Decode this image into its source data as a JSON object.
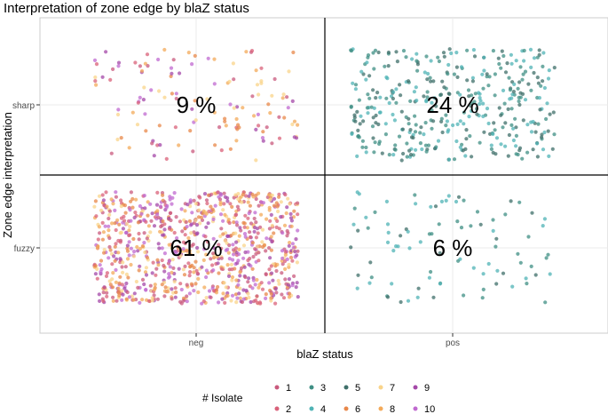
{
  "chart_data": {
    "type": "scatter",
    "title": "Interpretation of zone edge by blaZ status",
    "xlabel": "blaZ status",
    "ylabel": "Zone edge interpretation",
    "x_categories": [
      "neg",
      "pos"
    ],
    "y_categories": [
      "fuzzy",
      "sharp"
    ],
    "cells": [
      {
        "x": "neg",
        "y": "sharp",
        "percent_label": "9 %",
        "approx_points": 130
      },
      {
        "x": "pos",
        "y": "sharp",
        "percent_label": "24 %",
        "approx_points": 380
      },
      {
        "x": "neg",
        "y": "fuzzy",
        "percent_label": "61 %",
        "approx_points": 900
      },
      {
        "x": "pos",
        "y": "fuzzy",
        "percent_label": "6 %",
        "approx_points": 90
      }
    ],
    "legend": {
      "title": "# Isolate",
      "position": "bottom",
      "items": [
        {
          "label": "1",
          "color": "#c95a7d"
        },
        {
          "label": "2",
          "color": "#d9627a"
        },
        {
          "label": "3",
          "color": "#3f8f84"
        },
        {
          "label": "4",
          "color": "#4fb3b5"
        },
        {
          "label": "5",
          "color": "#3f6f6a"
        },
        {
          "label": "6",
          "color": "#e8884a"
        },
        {
          "label": "7",
          "color": "#f9d48a"
        },
        {
          "label": "8",
          "color": "#f3aa5a"
        },
        {
          "label": "9",
          "color": "#a448a8"
        },
        {
          "label": "10",
          "color": "#c06ad0"
        }
      ]
    },
    "grid": true,
    "jitter": true
  }
}
